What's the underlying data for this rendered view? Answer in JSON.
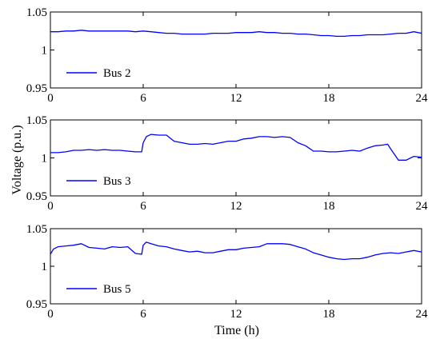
{
  "figure": {
    "ylabel": "Voltage (p.u.)",
    "xlabel": "Time (h)",
    "line_color": "#0000ff"
  },
  "chart_data": [
    {
      "type": "line",
      "series": [
        {
          "name": "Bus 2"
        }
      ],
      "legend": "bottom-left",
      "xlim": [
        0,
        24
      ],
      "ylim": [
        0.95,
        1.05
      ],
      "xticks": [
        "0",
        "6",
        "12",
        "18",
        "24"
      ],
      "yticks": [
        "0.95",
        "1",
        "1.05"
      ],
      "x": [
        0,
        0.5,
        1,
        1.5,
        2,
        2.5,
        3,
        3.5,
        4,
        4.5,
        5,
        5.5,
        6,
        6.5,
        7,
        7.5,
        8,
        8.5,
        9,
        9.5,
        10,
        10.5,
        11,
        11.5,
        12,
        12.5,
        13,
        13.5,
        14,
        14.5,
        15,
        15.5,
        16,
        16.5,
        17,
        17.5,
        18,
        18.5,
        19,
        19.5,
        20,
        20.5,
        21,
        21.5,
        22,
        22.5,
        23,
        23.5,
        24
      ],
      "y": [
        1.024,
        1.024,
        1.025,
        1.025,
        1.026,
        1.025,
        1.025,
        1.025,
        1.025,
        1.025,
        1.025,
        1.024,
        1.025,
        1.024,
        1.023,
        1.022,
        1.022,
        1.021,
        1.021,
        1.021,
        1.021,
        1.022,
        1.022,
        1.022,
        1.023,
        1.023,
        1.023,
        1.024,
        1.023,
        1.023,
        1.022,
        1.022,
        1.021,
        1.021,
        1.02,
        1.019,
        1.019,
        1.018,
        1.018,
        1.019,
        1.019,
        1.02,
        1.02,
        1.02,
        1.021,
        1.022,
        1.022,
        1.024,
        1.022
      ]
    },
    {
      "type": "line",
      "series": [
        {
          "name": "Bus 3"
        }
      ],
      "legend": "bottom-left",
      "xlim": [
        0,
        24
      ],
      "ylim": [
        0.95,
        1.05
      ],
      "xticks": [
        "0",
        "6",
        "12",
        "18",
        "24"
      ],
      "yticks": [
        "0.95",
        "1",
        "1.05"
      ],
      "x": [
        0,
        0.5,
        1,
        1.5,
        2,
        2.5,
        3,
        3.5,
        4,
        4.5,
        5,
        5.5,
        5.9,
        6,
        6.2,
        6.5,
        7,
        7.5,
        8,
        8.5,
        9,
        9.5,
        10,
        10.5,
        11,
        11.5,
        12,
        12.5,
        13,
        13.5,
        14,
        14.5,
        15,
        15.5,
        16,
        16.5,
        17,
        17.5,
        18,
        18.5,
        19,
        19.5,
        20,
        20.5,
        21,
        21.5,
        21.8,
        22,
        22.5,
        23,
        23.5,
        24
      ],
      "y": [
        1.007,
        1.007,
        1.008,
        1.01,
        1.01,
        1.011,
        1.01,
        1.011,
        1.01,
        1.01,
        1.009,
        1.008,
        1.008,
        1.02,
        1.028,
        1.031,
        1.03,
        1.03,
        1.022,
        1.02,
        1.018,
        1.018,
        1.019,
        1.018,
        1.02,
        1.022,
        1.022,
        1.025,
        1.026,
        1.028,
        1.028,
        1.027,
        1.028,
        1.027,
        1.02,
        1.016,
        1.009,
        1.009,
        1.008,
        1.008,
        1.009,
        1.01,
        1.009,
        1.013,
        1.016,
        1.017,
        1.018,
        1.012,
        0.997,
        0.997,
        1.002,
        1.001
      ]
    },
    {
      "type": "line",
      "series": [
        {
          "name": "Bus 5"
        }
      ],
      "legend": "bottom-left",
      "xlim": [
        0,
        24
      ],
      "ylim": [
        0.95,
        1.05
      ],
      "xticks": [
        "0",
        "6",
        "12",
        "18",
        "24"
      ],
      "yticks": [
        "0.95",
        "1",
        "1.05"
      ],
      "x": [
        0,
        0.2,
        0.5,
        1,
        1.5,
        2,
        2.5,
        3,
        3.5,
        4,
        4.5,
        5,
        5.5,
        5.9,
        6,
        6.2,
        6.5,
        7,
        7.5,
        8,
        8.5,
        9,
        9.5,
        10,
        10.5,
        11,
        11.5,
        12,
        12.5,
        13,
        13.5,
        14,
        14.5,
        15,
        15.5,
        16,
        16.5,
        17,
        17.5,
        18,
        18.5,
        19,
        19.5,
        20,
        20.5,
        21,
        21.5,
        22,
        22.5,
        23,
        23.5,
        24
      ],
      "y": [
        1.016,
        1.023,
        1.026,
        1.027,
        1.028,
        1.03,
        1.025,
        1.024,
        1.023,
        1.026,
        1.025,
        1.026,
        1.017,
        1.016,
        1.028,
        1.032,
        1.03,
        1.027,
        1.026,
        1.023,
        1.021,
        1.019,
        1.02,
        1.018,
        1.018,
        1.02,
        1.022,
        1.022,
        1.024,
        1.025,
        1.026,
        1.03,
        1.03,
        1.03,
        1.029,
        1.026,
        1.023,
        1.018,
        1.015,
        1.012,
        1.01,
        1.009,
        1.01,
        1.01,
        1.012,
        1.015,
        1.017,
        1.018,
        1.017,
        1.019,
        1.021,
        1.019
      ]
    }
  ]
}
